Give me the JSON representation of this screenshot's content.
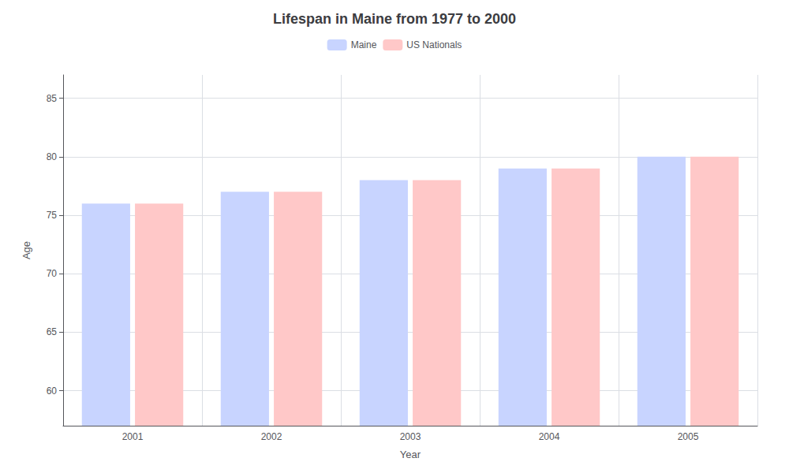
{
  "chart_data": {
    "type": "bar",
    "title": "Lifespan in Maine from 1977 to 2000",
    "xlabel": "Year",
    "ylabel": "Age",
    "categories": [
      "2001",
      "2002",
      "2003",
      "2004",
      "2005"
    ],
    "series": [
      {
        "name": "Maine",
        "color": "#c8d4ff",
        "values": [
          76,
          77,
          78,
          79,
          80
        ]
      },
      {
        "name": "US Nationals",
        "color": "#ffc8c8",
        "values": [
          76,
          77,
          78,
          79,
          80
        ]
      }
    ],
    "ylim": [
      57,
      87
    ],
    "yticks": [
      60,
      65,
      70,
      75,
      80,
      85
    ],
    "grid": true,
    "legend": "top"
  }
}
